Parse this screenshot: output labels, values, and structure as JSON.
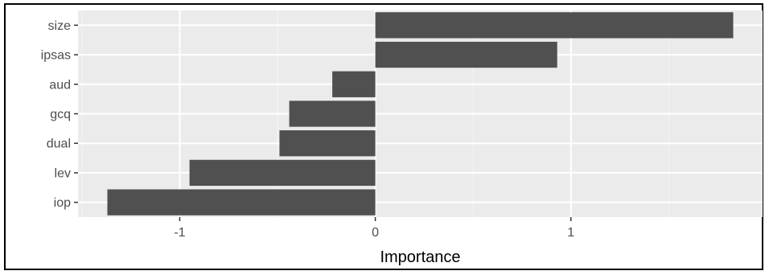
{
  "chart_data": {
    "type": "bar",
    "orientation": "horizontal",
    "categories": [
      "size",
      "ipsas",
      "aud",
      "gcq",
      "dual",
      "lev",
      "iop"
    ],
    "values": [
      1.83,
      0.93,
      -0.22,
      -0.44,
      -0.49,
      -0.95,
      -1.37
    ],
    "xlabel": "Importance",
    "ylabel": "",
    "xlim": [
      -1.52,
      1.98
    ],
    "xticks": [
      {
        "value": -1,
        "label": "-1"
      },
      {
        "value": 0,
        "label": "0"
      },
      {
        "value": 1,
        "label": "1"
      }
    ],
    "grid": true,
    "legend": "none",
    "colors": {
      "bar": "#505050",
      "panel": "#ebebeb",
      "grid_major": "#ffffff",
      "grid_minor": "#f4f4f4"
    }
  }
}
